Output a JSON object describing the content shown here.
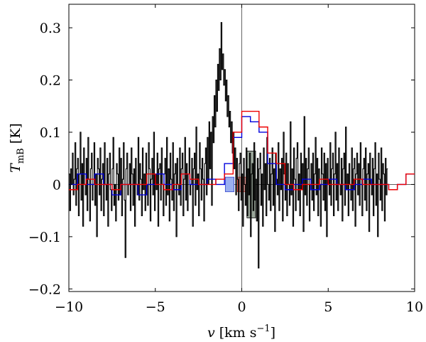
{
  "chart_data": {
    "type": "line",
    "xlabel": {
      "var": "v",
      "unit": "[km s",
      "exp": "−1",
      "close": "]"
    },
    "ylabel": {
      "var": "T",
      "sub": "mB",
      "unit": "[K]"
    },
    "xlim": [
      -10,
      10
    ],
    "ylim": [
      -0.205,
      0.345
    ],
    "xticks": [
      -10,
      -5,
      0,
      5,
      10
    ],
    "xtick_labels": [
      "−10",
      "−5",
      "0",
      "5",
      "10"
    ],
    "yticks": [
      -0.2,
      -0.1,
      0,
      0.1,
      0.2,
      0.3
    ],
    "ytick_labels": [
      "−0.2",
      "−0.1",
      "0",
      "0.1",
      "0.2",
      "0.3"
    ],
    "grid": false,
    "zero_lines": true,
    "series": [
      {
        "style": "step",
        "color": "#000000",
        "x_start": -10,
        "x_step": 0.05,
        "values": [
          0.02,
          -0.05,
          0.03,
          0.0,
          0.06,
          -0.02,
          0.01,
          0.08,
          -0.04,
          0.03,
          0.05,
          -0.06,
          0.02,
          0.1,
          -0.03,
          0.04,
          -0.08,
          0.07,
          0.0,
          -0.02,
          0.05,
          -0.05,
          0.09,
          0.01,
          -0.07,
          0.03,
          0.06,
          -0.03,
          0.0,
          0.08,
          -0.04,
          0.02,
          -0.1,
          0.05,
          0.03,
          -0.02,
          0.07,
          -0.05,
          0.01,
          0.04,
          -0.06,
          0.08,
          0.0,
          -0.03,
          0.05,
          -0.08,
          0.02,
          0.06,
          -0.01,
          -0.05,
          0.03,
          0.09,
          -0.04,
          0.0,
          -0.07,
          0.04,
          0.02,
          -0.03,
          0.07,
          -0.02,
          0.05,
          -0.06,
          0.01,
          0.08,
          -0.03,
          -0.14,
          0.03,
          0.06,
          -0.02,
          0.0,
          0.04,
          -0.05,
          0.07,
          0.02,
          -0.04,
          0.03,
          -0.08,
          0.05,
          0.0,
          -0.02,
          0.09,
          -0.03,
          0.04,
          0.01,
          -0.06,
          0.07,
          -0.01,
          0.02,
          -0.05,
          0.06,
          0.0,
          -0.04,
          0.08,
          0.03,
          -0.07,
          0.01,
          0.05,
          -0.02,
          0.1,
          -0.05,
          0.02,
          -0.01,
          0.06,
          -0.08,
          0.03,
          0.04,
          -0.03,
          0.07,
          0.0,
          -0.06,
          0.02,
          0.05,
          -0.04,
          0.09,
          -0.02,
          0.03,
          -0.07,
          0.06,
          0.01,
          -0.03,
          0.08,
          -0.05,
          0.02,
          0.04,
          -0.1,
          0.05,
          0.0,
          -0.02,
          0.07,
          -0.04,
          0.03,
          0.06,
          -0.06,
          0.01,
          0.09,
          -0.03,
          0.04,
          -0.05,
          0.02,
          0.07,
          -0.02,
          0.0,
          0.05,
          -0.08,
          0.03,
          0.06,
          -0.04,
          0.11,
          -0.01,
          0.02,
          -0.06,
          0.08,
          0.03,
          -0.03,
          0.05,
          0.01,
          -0.07,
          0.04,
          0.07,
          -0.02,
          0.09,
          0.0,
          0.12,
          0.03,
          0.1,
          -0.04,
          0.13,
          0.08,
          0.17,
          0.11,
          0.2,
          0.14,
          0.23,
          0.18,
          0.26,
          0.2,
          0.31,
          0.22,
          0.25,
          0.19,
          0.22,
          0.16,
          0.2,
          0.13,
          0.17,
          0.11,
          0.14,
          0.08,
          0.12,
          0.06,
          0.1,
          0.03,
          0.07,
          -0.02,
          0.05,
          0.01,
          -0.05,
          0.04,
          0.06,
          -0.03,
          0.02,
          -0.08,
          0.05,
          0.0,
          -0.04,
          0.07,
          -0.06,
          0.03,
          -0.02,
          0.06,
          -0.1,
          0.02,
          0.04,
          -0.05,
          0.08,
          -0.03,
          0.01,
          -0.07,
          0.05,
          -0.16,
          0.03,
          0.06,
          -0.04,
          0.02,
          -0.08,
          0.07,
          -0.01,
          0.04,
          -0.06,
          0.09,
          0.0,
          -0.03,
          0.05,
          -0.05,
          0.02,
          0.07,
          -0.04,
          0.03,
          -0.09,
          0.06,
          0.01,
          -0.02,
          0.08,
          -0.05,
          0.03,
          -0.01,
          0.05,
          -0.07,
          0.1,
          0.02,
          -0.03,
          0.06,
          -0.06,
          0.04,
          0.0,
          -0.04,
          0.12,
          -0.02,
          0.03,
          -0.08,
          0.07,
          0.01,
          -0.05,
          0.05,
          0.08,
          -0.03,
          0.02,
          -0.06,
          0.06,
          -0.01,
          0.04,
          -0.09,
          0.13,
          -0.02,
          0.05,
          -0.04,
          0.03,
          0.07,
          -0.07,
          0.0,
          0.04,
          -0.03,
          0.06,
          -0.05,
          0.02,
          0.09,
          -0.02,
          0.05,
          -0.06,
          0.03,
          0.0,
          -0.08,
          0.07,
          0.02,
          -0.03,
          0.06,
          -0.05,
          0.04,
          -0.1,
          0.05,
          0.01,
          -0.02,
          0.08,
          -0.04,
          0.03,
          0.06,
          -0.06,
          0.02,
          0.1,
          -0.03,
          0.04,
          -0.05,
          0.07,
          0.0,
          -0.02,
          0.05,
          -0.07,
          0.03,
          0.06,
          -0.04,
          0.11,
          -0.01,
          0.02,
          -0.06,
          0.04,
          0.0,
          -0.03,
          0.07,
          -0.05,
          0.03,
          0.05,
          -0.08,
          0.02,
          0.06,
          -0.02,
          0.04,
          -0.04,
          0.08,
          0.01,
          -0.06,
          0.03,
          0.05,
          -0.03,
          0.07,
          -0.05,
          0.02,
          0.04,
          -0.09,
          0.06,
          0.0,
          -0.02,
          0.05,
          -0.06,
          0.03,
          0.08,
          -0.04,
          0.02,
          -0.1,
          0.06,
          0.01,
          -0.03,
          0.07,
          -0.05,
          0.04,
          0.02,
          -0.07,
          0.05,
          -0.02,
          0.03
        ]
      },
      {
        "style": "step",
        "color": "#0000dd",
        "x_start": -10,
        "x_step": 0.5,
        "values": [
          0.0,
          0.02,
          0.0,
          0.02,
          0.0,
          -0.02,
          0.0,
          0.0,
          -0.02,
          0.0,
          0.02,
          0.0,
          -0.01,
          0.02,
          0.0,
          0.0,
          0.01,
          0.0,
          0.04,
          0.09,
          0.13,
          0.12,
          0.1,
          0.04,
          0.0,
          -0.01,
          0.0,
          0.01,
          -0.01,
          0.0,
          0.01,
          0.0,
          -0.01,
          0.0,
          0.01,
          0.0,
          0.0,
          -0.01,
          0.0,
          0.02
        ]
      },
      {
        "style": "step",
        "color": "#ee0000",
        "x_start": -10,
        "x_step": 0.5,
        "values": [
          -0.01,
          0.0,
          0.01,
          0.0,
          0.0,
          -0.01,
          0.0,
          0.0,
          0.0,
          0.02,
          0.0,
          -0.01,
          0.0,
          0.02,
          0.01,
          0.0,
          0.0,
          0.01,
          0.02,
          0.1,
          0.14,
          0.14,
          0.11,
          0.06,
          0.04,
          0.0,
          -0.01,
          0.0,
          0.0,
          0.01,
          0.0,
          0.0,
          0.0,
          0.01,
          0.0,
          0.0,
          0.0,
          -0.01,
          0.0,
          0.02
        ]
      }
    ],
    "boxes": [
      {
        "x0": -0.95,
        "x1": -0.45,
        "y0": -0.014,
        "y1": 0.014,
        "fill": "#9bb0f0",
        "stroke": "#3344cc"
      },
      {
        "x0": -0.25,
        "x1": 0.25,
        "y0": -0.014,
        "y1": 0.014,
        "fill": "#f5a5a0",
        "stroke": "#dd3322"
      },
      {
        "x0": 0.3,
        "x1": 0.8,
        "y0": -0.064,
        "y1": 0.064,
        "fill": "#9aa69a",
        "stroke": "#000000"
      }
    ]
  }
}
